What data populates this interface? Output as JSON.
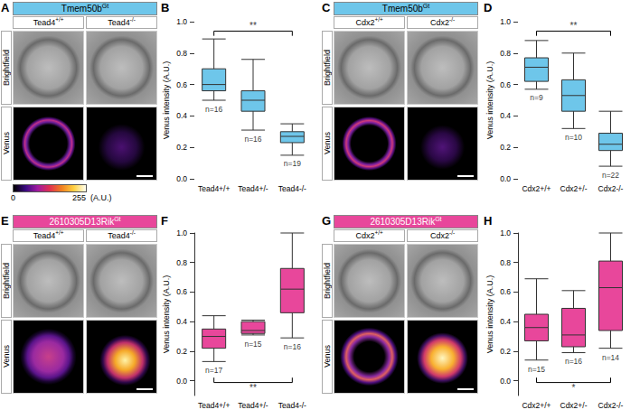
{
  "panels": [
    {
      "letter": "A",
      "header": {
        "gene": "Tmem50b",
        "superscript": "Gt"
      },
      "color": "#6ec6ea",
      "genotypes": [
        "Tead4+/+",
        "Tead4-/-"
      ],
      "rows": [
        "Brightfield",
        "Venus"
      ],
      "colorbar": {
        "min": 0,
        "max": 255,
        "label": "(A.U.)"
      }
    },
    {
      "letter": "C",
      "header": {
        "gene": "Tmem50b",
        "superscript": "Gt"
      },
      "color": "#6ec6ea",
      "genotypes": [
        "Cdx2+/+",
        "Cdx2-/-"
      ],
      "rows": [
        "Brightfield",
        "Venus"
      ]
    },
    {
      "letter": "E",
      "header": {
        "gene": "2610305D13Rik",
        "superscript": "Gt"
      },
      "color": "#e8479b",
      "genotypes": [
        "Tead4+/+",
        "Tead4-/-"
      ],
      "rows": [
        "Brightfield",
        "Venus"
      ]
    },
    {
      "letter": "G",
      "header": {
        "gene": "2610305D13Rik",
        "superscript": "Gt"
      },
      "color": "#e8479b",
      "genotypes": [
        "Cdx2+/+",
        "Cdx2-/-"
      ],
      "rows": [
        "Brightfield",
        "Venus"
      ]
    }
  ],
  "chart_data": [
    {
      "letter": "B",
      "type": "boxplot",
      "color": "#6ec6ea",
      "ylabel": "Venus intensity (A.U.)",
      "categories": [
        "Tead4+/+",
        "Tead4+/-",
        "Tead4-/-"
      ],
      "values": [
        [
          0.5,
          0.56,
          0.6,
          0.7,
          0.89
        ],
        [
          0.31,
          0.43,
          0.5,
          0.56,
          0.76
        ],
        [
          0.15,
          0.23,
          0.27,
          0.3,
          0.35
        ]
      ],
      "n_labels": [
        "n=16",
        "n=16",
        "n=19"
      ],
      "significance": {
        "between": [
          0,
          2
        ],
        "label": "**",
        "position": "top"
      },
      "ylim": [
        0,
        1.0
      ],
      "yticks": [
        {
          "value": 0,
          "label": "0.0"
        },
        0.2,
        0.4,
        0.6,
        0.8,
        {
          "value": 1.0,
          "label": "1.0"
        }
      ],
      "grid": false
    },
    {
      "letter": "D",
      "type": "boxplot",
      "color": "#6ec6ea",
      "ylabel": "Venus intensity (A.U.)",
      "categories": [
        "Cdx2+/+",
        "Cdx2+/-",
        "Cdx2-/-"
      ],
      "values": [
        [
          0.57,
          0.62,
          0.71,
          0.77,
          0.88
        ],
        [
          0.32,
          0.43,
          0.53,
          0.63,
          0.8
        ],
        [
          0.08,
          0.18,
          0.22,
          0.29,
          0.43
        ]
      ],
      "n_labels": [
        "n=9",
        "n=10",
        "n=22"
      ],
      "significance": {
        "between": [
          0,
          2
        ],
        "label": "**",
        "position": "top"
      },
      "ylim": [
        0,
        1.0
      ],
      "yticks": [
        {
          "value": 0,
          "label": "0.0"
        },
        0.2,
        0.4,
        0.6,
        0.8,
        {
          "value": 1.0,
          "label": "1.0"
        }
      ],
      "grid": false
    },
    {
      "letter": "F",
      "type": "boxplot",
      "color": "#e8479b",
      "ylabel": "Venus intensity (A.U.)",
      "categories": [
        "Tead4+/+",
        "Tead4+/-",
        "Tead4-/-"
      ],
      "values": [
        [
          0.13,
          0.22,
          0.3,
          0.35,
          0.44
        ],
        [
          0.31,
          0.32,
          0.34,
          0.4,
          0.41
        ],
        [
          0.29,
          0.46,
          0.62,
          0.76,
          1.0
        ]
      ],
      "n_labels": [
        "n=17",
        "n=15",
        "n=16"
      ],
      "significance": {
        "between": [
          0,
          2
        ],
        "label": "**",
        "position": "bottom"
      },
      "ylim": [
        -0.1,
        1.0
      ],
      "yticks": [
        {
          "value": 0,
          "label": "0.0"
        },
        0.2,
        0.4,
        0.6,
        0.8,
        {
          "value": 1.0,
          "label": "1.0"
        }
      ],
      "grid": false
    },
    {
      "letter": "H",
      "type": "boxplot",
      "color": "#e8479b",
      "ylabel": "Venus intensity (A.U.)",
      "categories": [
        "Cdx2+/+",
        "Cdx2+/-",
        "Cdx2-/-"
      ],
      "values": [
        [
          0.14,
          0.27,
          0.36,
          0.45,
          0.69
        ],
        [
          0.19,
          0.23,
          0.31,
          0.49,
          0.61
        ],
        [
          0.22,
          0.34,
          0.63,
          0.81,
          1.0
        ]
      ],
      "n_labels": [
        "n=15",
        "n=16",
        "n=14"
      ],
      "significance": {
        "between": [
          0,
          2
        ],
        "label": "*",
        "position": "bottom"
      },
      "ylim": [
        -0.1,
        1.0
      ],
      "yticks": [
        {
          "value": 0,
          "label": "0.0"
        },
        0.2,
        0.4,
        0.6,
        0.8,
        {
          "value": 1.0,
          "label": "1.0"
        }
      ],
      "grid": false
    }
  ]
}
